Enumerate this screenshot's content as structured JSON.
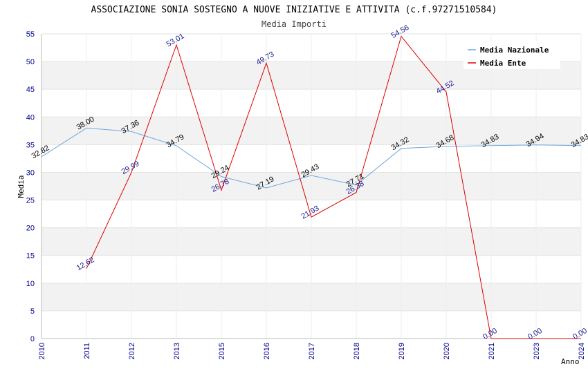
{
  "chart_data": {
    "type": "line",
    "title": "ASSOCIAZIONE SONIA SOSTEGNO A NUOVE INIZIATIVE E ATTIVITA (c.f.97271510584)",
    "subtitle": "Media Importi",
    "xlabel": "Anno",
    "ylabel": "Media",
    "ylim": [
      0,
      55
    ],
    "yticks": [
      0,
      5,
      10,
      15,
      20,
      25,
      30,
      35,
      40,
      45,
      50,
      55
    ],
    "grid": true,
    "legend_position": "top-right",
    "categories": [
      "2010",
      "2011",
      "2012",
      "2013",
      "2015",
      "2016",
      "2017",
      "2018",
      "2019",
      "2020",
      "2021",
      "2023",
      "2024"
    ],
    "series": [
      {
        "name": "Media Nazionale",
        "color": "#6fa8dc",
        "values": [
          32.82,
          38.0,
          37.36,
          34.79,
          29.24,
          27.19,
          29.43,
          27.71,
          34.32,
          34.68,
          34.83,
          34.94,
          34.83
        ],
        "labels": [
          "32.82",
          "38.00",
          "37.36",
          "34.79",
          "29.24",
          "27.19",
          "29.43",
          "27.71",
          "34.32",
          "34.68",
          "34.83",
          "34.94",
          "34.83"
        ]
      },
      {
        "name": "Media Ente",
        "color": "#dd0000",
        "values": [
          null,
          12.62,
          29.99,
          53.01,
          26.78,
          49.73,
          21.93,
          26.38,
          54.56,
          44.52,
          0.0,
          0.0,
          0.0
        ],
        "labels": [
          "",
          "12.62",
          "29.99",
          "53.01",
          "26.78",
          "49.73",
          "21.93",
          "26.38",
          "54.56",
          "44.52",
          "0.00",
          "0.00",
          "0.00"
        ]
      }
    ]
  }
}
